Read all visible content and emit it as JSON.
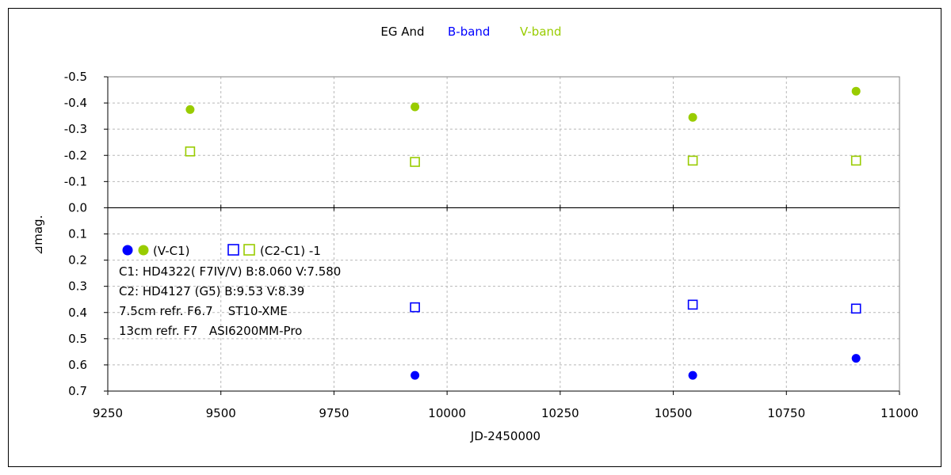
{
  "chart_data": {
    "type": "scatter",
    "title": "EG And",
    "title_band_b": "B-band",
    "title_band_v": "V-band",
    "xlabel": "JD-2450000",
    "ylabel": "⊿mag.",
    "xlim": [
      9250,
      11000
    ],
    "ylim": [
      0.7,
      -0.5
    ],
    "y_inverted": true,
    "grid": true,
    "x_ticks": [
      "9250",
      "9500",
      "9750",
      "10000",
      "10250",
      "10500",
      "10750",
      "11000"
    ],
    "x_tick_values": [
      9250,
      9500,
      9750,
      10000,
      10250,
      10500,
      10750,
      11000
    ],
    "y_ticks": [
      "-0.5",
      "-0.4",
      "-0.3",
      "-0.2",
      "-0.1",
      "0.0",
      "0.1",
      "0.2",
      "0.3",
      "0.4",
      "0.5",
      "0.6",
      "0.7"
    ],
    "y_tick_values": [
      -0.5,
      -0.4,
      -0.3,
      -0.2,
      -0.1,
      0.0,
      0.1,
      0.2,
      0.3,
      0.4,
      0.5,
      0.6,
      0.7
    ],
    "colors": {
      "B": "#0000ff",
      "V": "#99cc00"
    },
    "series": [
      {
        "band": "V",
        "marker": "filled-circle",
        "color": "#99cc00",
        "x": [
          9432,
          9929,
          10543,
          10904
        ],
        "y": [
          -0.375,
          -0.385,
          -0.345,
          -0.445
        ]
      },
      {
        "band": "V",
        "marker": "open-square",
        "color": "#99cc00",
        "x": [
          9432,
          9929,
          10543,
          10904
        ],
        "y": [
          -0.215,
          -0.175,
          -0.18,
          -0.18
        ]
      },
      {
        "band": "B",
        "marker": "filled-circle",
        "color": "#0000ff",
        "x": [
          9929,
          10543,
          10904
        ],
        "y": [
          0.64,
          0.64,
          0.575
        ]
      },
      {
        "band": "B",
        "marker": "open-square",
        "color": "#0000ff",
        "x": [
          9929,
          10543,
          10904
        ],
        "y": [
          0.38,
          0.37,
          0.385
        ]
      }
    ],
    "legend": {
      "placement": "inside-lower-left",
      "vc1_label": "(V-C1)",
      "c2c1_label": "(C2-C1) -1"
    },
    "annotations": [
      "C1: HD4322( F7IV/V) B:8.060 V:7.580",
      "C2: HD4127 (G5) B:9.53 V:8.39",
      "7.5cm refr. F6.7    ST10-XME",
      "13cm refr. F7   ASI6200MM-Pro"
    ]
  }
}
